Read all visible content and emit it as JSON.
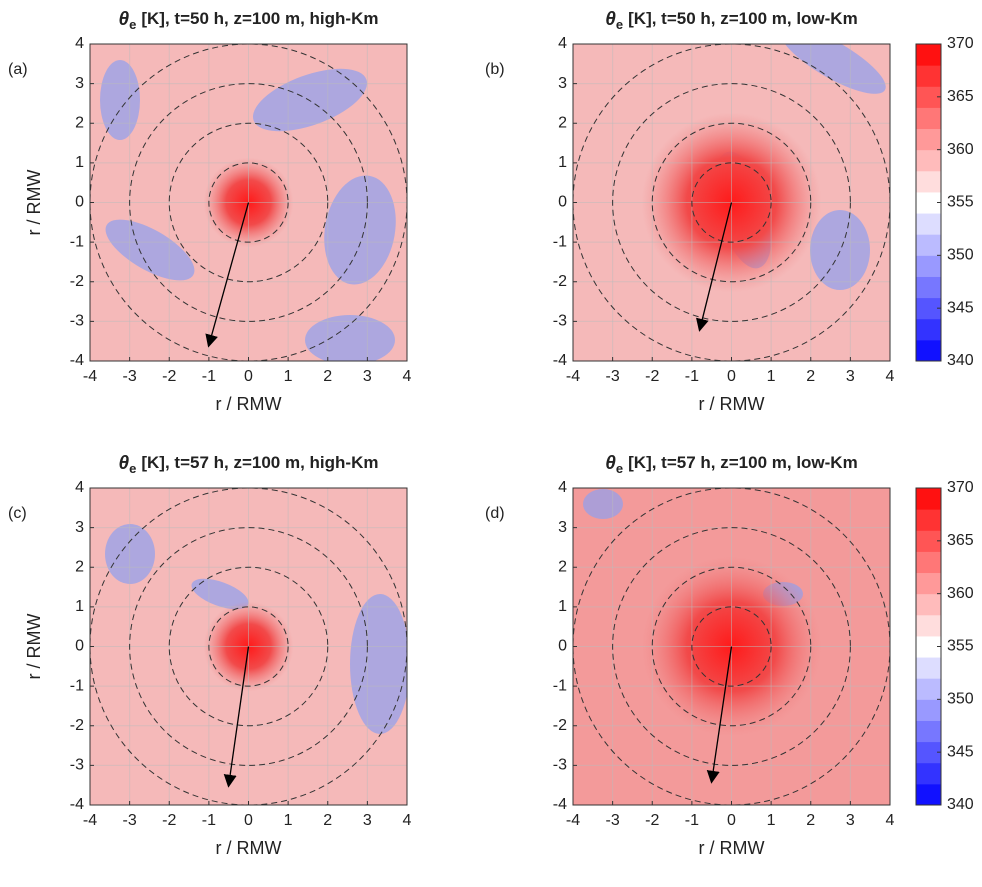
{
  "chart_data": [
    {
      "type": "contour",
      "label": "(a)",
      "symbol": "θ",
      "symbol_sub": "e",
      "title": "[K], t=50 h, z=100 m, high-Km",
      "xlabel": "r / RMW",
      "ylabel": "r / RMW",
      "xlim": [
        -4,
        4
      ],
      "ylim": [
        -4,
        4
      ],
      "xticks": [
        -4,
        -3,
        -2,
        -1,
        0,
        1,
        2,
        3,
        4
      ],
      "yticks": [
        -4,
        -3,
        -2,
        -1,
        0,
        1,
        2,
        3,
        4
      ],
      "grid": true,
      "rings": [
        1,
        2,
        3,
        4
      ],
      "arrow": {
        "x": -1,
        "y": -3.6
      }
    },
    {
      "type": "contour",
      "label": "(b)",
      "symbol": "θ",
      "symbol_sub": "e",
      "title": "[K], t=50 h, z=100 m, low-Km",
      "xlabel": "r / RMW",
      "xlim": [
        -4,
        4
      ],
      "ylim": [
        -4,
        4
      ],
      "xticks": [
        -4,
        -3,
        -2,
        -1,
        0,
        1,
        2,
        3,
        4
      ],
      "yticks": [
        -4,
        -3,
        -2,
        -1,
        0,
        1,
        2,
        3,
        4
      ],
      "grid": true,
      "rings": [
        1,
        2,
        3,
        4
      ],
      "arrow": {
        "x": -0.8,
        "y": -3.2
      },
      "colorbar": {
        "clim": [
          340,
          370
        ],
        "ticks": [
          340,
          345,
          350,
          355,
          360,
          365,
          370
        ],
        "colors": [
          "#0000ff",
          "#ffffff",
          "#ff0000"
        ]
      }
    },
    {
      "type": "contour",
      "label": "(c)",
      "symbol": "θ",
      "symbol_sub": "e",
      "title": "[K], t=57 h, z=100 m, high-Km",
      "xlabel": "r / RMW",
      "ylabel": "r / RMW",
      "xlim": [
        -4,
        4
      ],
      "ylim": [
        -4,
        4
      ],
      "xticks": [
        -4,
        -3,
        -2,
        -1,
        0,
        1,
        2,
        3,
        4
      ],
      "yticks": [
        -4,
        -3,
        -2,
        -1,
        0,
        1,
        2,
        3,
        4
      ],
      "grid": true,
      "rings": [
        1,
        2,
        3,
        4
      ],
      "arrow": {
        "x": -0.5,
        "y": -3.5
      }
    },
    {
      "type": "contour",
      "label": "(d)",
      "symbol": "θ",
      "symbol_sub": "e",
      "title": "[K], t=57 h, z=100 m, low-Km",
      "xlabel": "r / RMW",
      "xlim": [
        -4,
        4
      ],
      "ylim": [
        -4,
        4
      ],
      "xticks": [
        -4,
        -3,
        -2,
        -1,
        0,
        1,
        2,
        3,
        4
      ],
      "yticks": [
        -4,
        -3,
        -2,
        -1,
        0,
        1,
        2,
        3,
        4
      ],
      "grid": true,
      "rings": [
        1,
        2,
        3,
        4
      ],
      "arrow": {
        "x": -0.5,
        "y": -3.4
      },
      "colorbar": {
        "clim": [
          340,
          370
        ],
        "ticks": [
          340,
          345,
          350,
          355,
          360,
          365,
          370
        ],
        "colors": [
          "#0000ff",
          "#ffffff",
          "#ff0000"
        ]
      }
    }
  ]
}
